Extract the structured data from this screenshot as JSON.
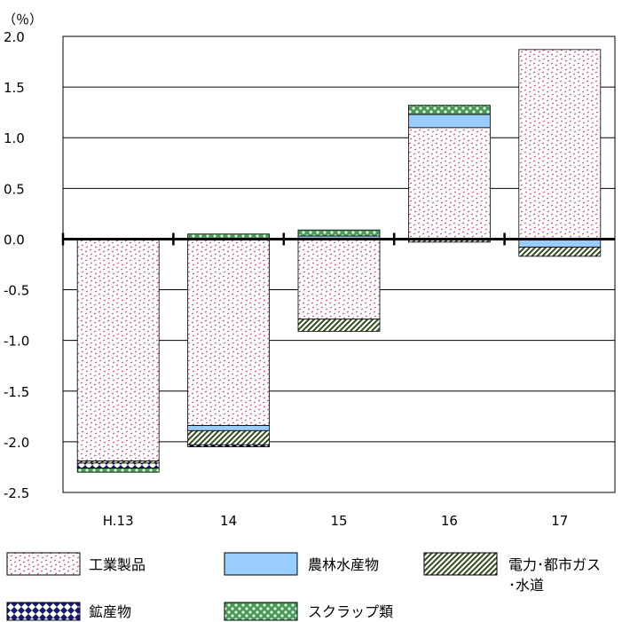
{
  "chart_data": {
    "type": "bar",
    "stacked": true,
    "unit_label": "（％）",
    "categories": [
      "H.13",
      "14",
      "15",
      "16",
      "17"
    ],
    "ylim": [
      -2.5,
      2.0
    ],
    "yticks": [
      "2.0",
      "1.5",
      "1.0",
      "0.5",
      "0.0",
      "-0.5",
      "-1.0",
      "-1.5",
      "-2.0",
      "-2.5"
    ],
    "grid": true,
    "legend_placement": "bottom",
    "series": [
      {
        "name": "工業製品",
        "key": "industrial",
        "values": [
          -2.19,
          -1.84,
          -0.79,
          1.1,
          1.87
        ]
      },
      {
        "name": "農林水産物",
        "key": "agri",
        "values": [
          0.0,
          -0.05,
          0.03,
          0.13,
          -0.08
        ]
      },
      {
        "name": "電力･都市ガス ･水道",
        "key": "utility",
        "values": [
          -0.02,
          -0.14,
          -0.12,
          -0.03,
          -0.09
        ]
      },
      {
        "name": "鉱産物",
        "key": "mineral",
        "values": [
          -0.05,
          -0.02,
          0.0,
          0.0,
          0.0
        ]
      },
      {
        "name": "スクラップ類",
        "key": "scrap",
        "values": [
          -0.04,
          0.05,
          0.06,
          0.09,
          0.0
        ]
      }
    ]
  },
  "legend": [
    {
      "key": "industrial",
      "label": "工業製品"
    },
    {
      "key": "agri",
      "label": "農林水産物"
    },
    {
      "key": "utility",
      "label_line1": "電力･都市ガス",
      "label_line2": "･水道"
    },
    {
      "key": "mineral",
      "label": "鉱産物"
    },
    {
      "key": "scrap",
      "label": "スクラップ類"
    }
  ]
}
